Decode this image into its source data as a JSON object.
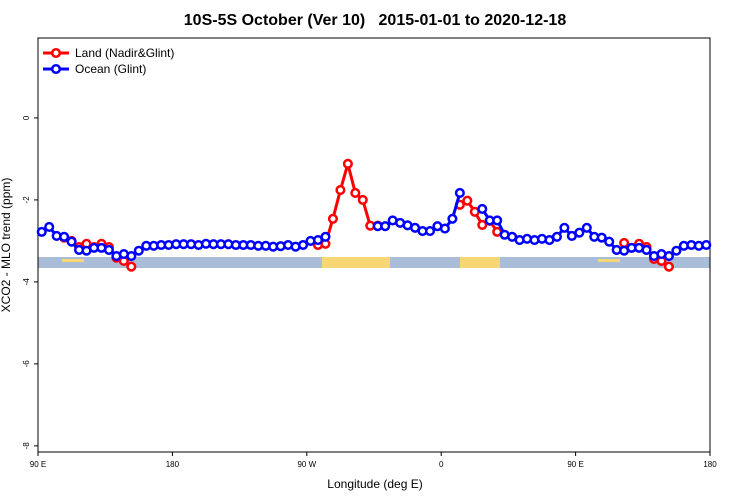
{
  "chart_data": {
    "type": "line",
    "title": "10S-5S October (Ver 10)   2015-01-01 to 2020-12-18",
    "x_label": "Longitude (deg E)",
    "y_label": "XCO2 - MLO trend (ppm)",
    "xlim": [
      90,
      540
    ],
    "ylim": [
      -8.15,
      1.95
    ],
    "xticks": [
      {
        "value": 90,
        "label": "90 E"
      },
      180,
      {
        "value": 270,
        "label": "90 W"
      },
      {
        "value": 360,
        "label": "0"
      },
      {
        "value": 450,
        "label": "90 E"
      },
      {
        "value": 540,
        "label": "180"
      }
    ],
    "yticks": [
      0,
      -2,
      -4,
      -6,
      -8
    ],
    "legend": "top-left",
    "x": [
      92.5,
      97.5,
      102.5,
      107.5,
      112.5,
      117.5,
      122.5,
      127.5,
      132.5,
      137.5,
      142.5,
      147.5,
      152.5,
      157.5,
      162.5,
      167.5,
      172.5,
      177.5,
      182.5,
      187.5,
      192.5,
      197.5,
      202.5,
      207.5,
      212.5,
      217.5,
      222.5,
      227.5,
      232.5,
      237.5,
      242.5,
      247.5,
      252.5,
      257.5,
      262.5,
      267.5,
      272.5,
      277.5,
      282.5,
      287.5,
      292.5,
      297.5,
      302.5,
      307.5,
      312.5,
      317.5,
      322.5,
      327.5,
      332.5,
      337.5,
      342.5,
      347.5,
      352.5,
      357.5,
      362.5,
      367.5,
      372.5,
      377.5,
      382.5,
      387.5,
      392.5,
      397.5,
      402.5,
      407.5,
      412.5,
      417.5,
      422.5,
      427.5,
      432.5,
      437.5,
      442.5,
      447.5,
      452.5,
      457.5,
      462.5,
      467.5,
      472.5,
      477.5,
      482.5,
      487.5,
      492.5,
      497.5,
      502.5,
      507.5,
      512.5,
      517.5,
      522.5,
      527.5,
      532.5,
      537.5
    ],
    "series": [
      {
        "name": "Land (Nadir&Glint)",
        "color": "#ff0000",
        "values": [
          null,
          null,
          null,
          -2.92,
          -3.0,
          -3.15,
          -3.07,
          -3.15,
          -3.07,
          -3.15,
          -3.41,
          -3.49,
          -3.63,
          null,
          null,
          null,
          null,
          null,
          null,
          null,
          null,
          null,
          null,
          null,
          null,
          null,
          null,
          null,
          null,
          null,
          null,
          null,
          null,
          null,
          null,
          null,
          null,
          -3.1,
          -3.07,
          -2.46,
          -1.76,
          -1.12,
          -1.83,
          -2.0,
          -2.63,
          -2.63,
          null,
          null,
          null,
          null,
          null,
          null,
          null,
          null,
          null,
          null,
          -2.12,
          -2.02,
          -2.29,
          -2.61,
          -2.51,
          -2.78,
          null,
          null,
          null,
          null,
          null,
          null,
          null,
          null,
          null,
          null,
          null,
          null,
          null,
          null,
          null,
          null,
          -3.05,
          -3.17,
          -3.07,
          -3.15,
          -3.44,
          -3.49,
          -3.63,
          null,
          null,
          null,
          null,
          null
        ]
      },
      {
        "name": "Ocean (Glint)",
        "color": "#0000ff",
        "values": [
          -2.78,
          -2.66,
          -2.88,
          -2.9,
          -3.02,
          -3.22,
          -3.24,
          -3.17,
          -3.17,
          -3.22,
          -3.37,
          -3.32,
          -3.37,
          -3.24,
          -3.12,
          -3.12,
          -3.1,
          -3.1,
          -3.08,
          -3.08,
          -3.08,
          -3.1,
          -3.07,
          -3.08,
          -3.08,
          -3.08,
          -3.1,
          -3.1,
          -3.1,
          -3.12,
          -3.12,
          -3.14,
          -3.13,
          -3.1,
          -3.14,
          -3.1,
          -3.0,
          -2.98,
          -2.9,
          null,
          null,
          null,
          null,
          null,
          null,
          -2.64,
          -2.64,
          -2.5,
          -2.56,
          -2.62,
          -2.68,
          -2.76,
          -2.76,
          -2.64,
          -2.7,
          -2.46,
          -1.83,
          null,
          null,
          -2.22,
          -2.5,
          -2.5,
          -2.85,
          -2.9,
          -2.98,
          -2.95,
          -2.98,
          -2.95,
          -2.98,
          -2.9,
          -2.68,
          -2.88,
          -2.8,
          -2.68,
          -2.9,
          -2.92,
          -3.02,
          -3.22,
          -3.24,
          -3.17,
          -3.17,
          -3.22,
          -3.37,
          -3.32,
          -3.37,
          -3.24,
          -3.12,
          -3.1,
          -3.12,
          -3.1
        ]
      }
    ]
  }
}
